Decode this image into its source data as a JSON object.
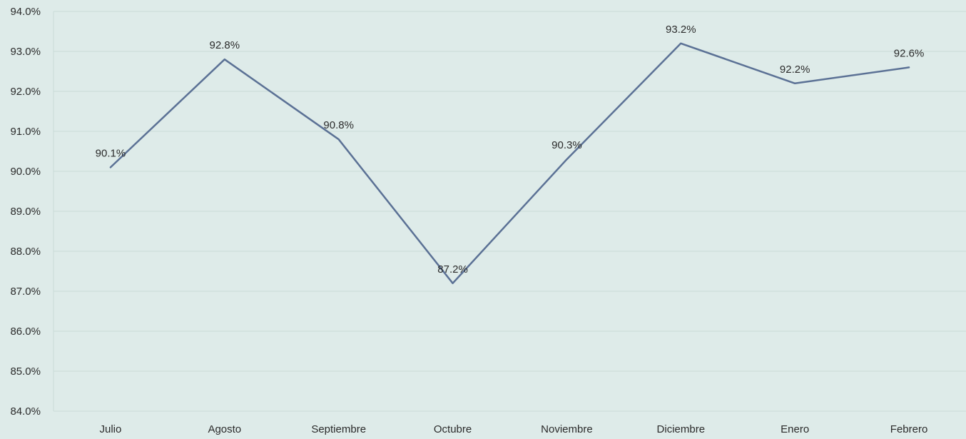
{
  "chart_data": {
    "type": "line",
    "title": "",
    "xlabel": "",
    "ylabel": "",
    "categories": [
      "Julio",
      "Agosto",
      "Septiembre",
      "Octubre",
      "Noviembre",
      "Diciembre",
      "Enero",
      "Febrero"
    ],
    "series": [
      {
        "values": [
          90.1,
          92.8,
          90.8,
          87.2,
          90.3,
          93.2,
          92.2,
          92.6
        ],
        "labels": [
          "90.1%",
          "92.8%",
          "90.8%",
          "87.2%",
          "90.3%",
          "93.2%",
          "92.2%",
          "92.6%"
        ],
        "color": "#5b7195"
      }
    ],
    "ylim": [
      84,
      94
    ],
    "yticks": [
      "84.0%",
      "85.0%",
      "86.0%",
      "87.0%",
      "88.0%",
      "89.0%",
      "90.0%",
      "91.0%",
      "92.0%",
      "93.0%",
      "94.0%"
    ],
    "grid": true,
    "legend": "none"
  },
  "colors": {
    "background": "#deebe9",
    "gridline": "#c9dbd8",
    "series": "#5b7195"
  }
}
